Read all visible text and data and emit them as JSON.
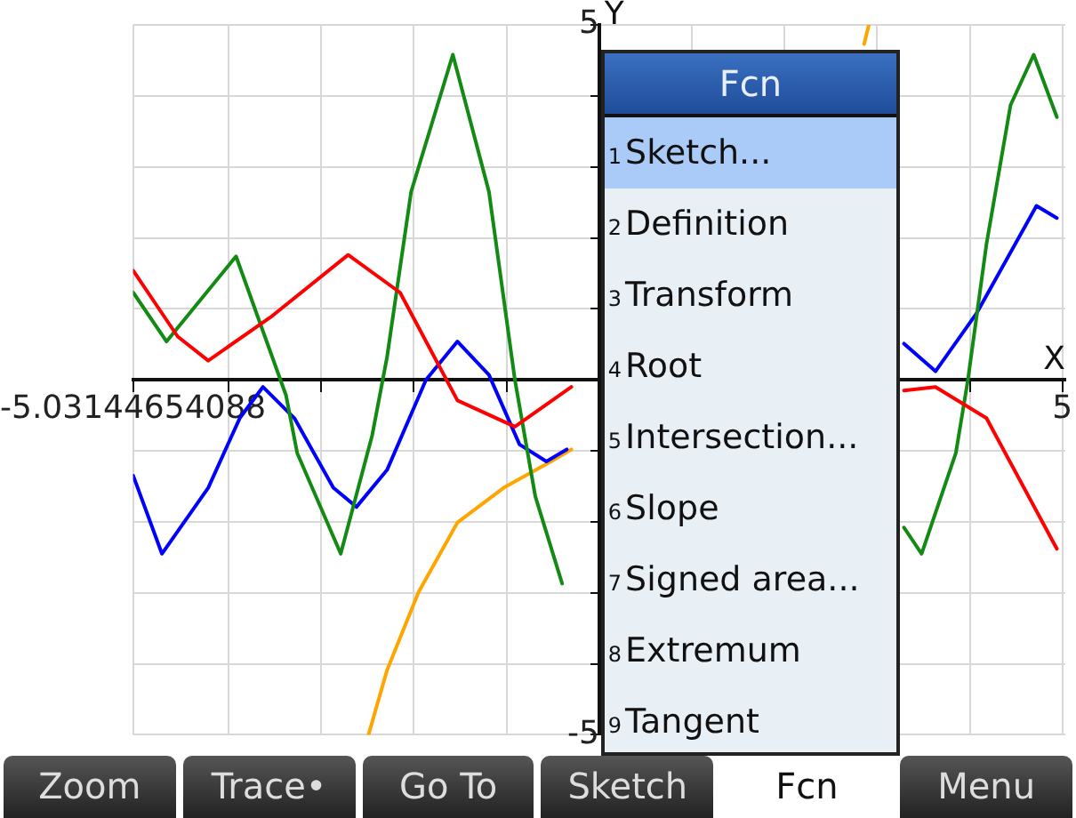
{
  "chart_data": {
    "type": "line",
    "xlabel": "X",
    "ylabel": "Y",
    "xlim": [
      -5.03144654088,
      5.03144654088
    ],
    "xticks": [
      {
        "value": -5.03144654088,
        "label": "-5.03144654088"
      },
      {
        "value": -4,
        "label": null
      },
      {
        "value": -3,
        "label": null
      },
      {
        "value": -2,
        "label": null
      },
      {
        "value": -1,
        "label": null
      },
      {
        "value": 0,
        "label": null
      },
      {
        "value": 1,
        "label": null
      },
      {
        "value": 2,
        "label": null
      },
      {
        "value": 3,
        "label": null
      },
      {
        "value": 4,
        "label": null
      },
      {
        "value": 5,
        "label": "5"
      }
    ],
    "ylim": [
      -5,
      5
    ],
    "yticks": [
      {
        "value": -5,
        "label": "-5"
      },
      {
        "value": -4,
        "label": null
      },
      {
        "value": -3,
        "label": null
      },
      {
        "value": -2,
        "label": null
      },
      {
        "value": -1,
        "label": null
      },
      {
        "value": 0,
        "label": null
      },
      {
        "value": 1,
        "label": null
      },
      {
        "value": 2,
        "label": null
      },
      {
        "value": 3,
        "label": null
      },
      {
        "value": 4,
        "label": null
      },
      {
        "value": 5,
        "label": "5"
      }
    ],
    "grid": true,
    "legend": false,
    "marker": "none",
    "line_style": "solid",
    "series": [
      {
        "color": "#ff0000",
        "x": [
          -5.03,
          -4.55,
          -4.22,
          -3.55,
          -2.71,
          -2.15,
          -1.53,
          -0.91,
          -0.3,
          1,
          3.29,
          3.63,
          4.18,
          4.94
        ],
        "values": [
          1.54,
          0.61,
          0.27,
          0.88,
          1.76,
          1.23,
          -0.29,
          -0.66,
          -0.1,
          null,
          -0.15,
          -0.1,
          -0.54,
          -2.38
        ]
      },
      {
        "color": "#138a13",
        "x": [
          -5.03,
          -4.67,
          -3.92,
          -3.38,
          -3.26,
          -2.79,
          -2.45,
          -2.29,
          -2.03,
          -1.58,
          -1.19,
          -0.91,
          -0.69,
          -0.4,
          1,
          3.29,
          3.48,
          3.85,
          3.98,
          4.18,
          4.44,
          4.69,
          4.94
        ],
        "values": [
          1.23,
          0.54,
          1.74,
          -0.22,
          -1.03,
          -2.45,
          -0.78,
          0.32,
          2.65,
          4.58,
          2.65,
          0,
          -1.64,
          -2.87,
          null,
          -2.08,
          -2.45,
          -1.03,
          0,
          1.91,
          3.87,
          4.58,
          3.7
        ]
      },
      {
        "color": "#0000ff",
        "x": [
          -5.03,
          -4.72,
          -4.22,
          -3.88,
          -3.63,
          -3.29,
          -2.87,
          -2.62,
          -2.29,
          -1.87,
          -1.53,
          -1.19,
          -0.86,
          -0.57,
          -0.35,
          1,
          3.29,
          3.63,
          4.07,
          4.72,
          4.94
        ],
        "values": [
          -1.35,
          -2.45,
          -1.52,
          -0.54,
          -0.1,
          -0.54,
          -1.52,
          -1.79,
          -1.27,
          0,
          0.54,
          0.07,
          -0.91,
          -1.15,
          -0.98,
          null,
          0.51,
          0.12,
          0.93,
          2.45,
          2.28
        ]
      },
      {
        "color": "#ffa500",
        "x": [
          -2.49,
          -2.29,
          -1.95,
          -1.53,
          -1.03,
          -0.52,
          -0.3,
          1,
          2.86,
          2.91
        ],
        "values": [
          -5,
          -4.09,
          -2.99,
          -2.01,
          -1.52,
          -1.15,
          -0.98,
          null,
          4.73,
          5
        ]
      }
    ],
    "annotations": [
      "Fcn",
      "1",
      "Sketch...",
      "2",
      "Definition",
      "3",
      "Transform",
      "4",
      "Root",
      "5",
      "Intersection...",
      "6",
      "Slope",
      "7",
      "Signed area...",
      "8",
      "Extremum",
      "9",
      "Tangent",
      "Zoom",
      "Trace•",
      "Go To",
      "Sketch",
      "Fcn",
      "Menu"
    ]
  }
}
